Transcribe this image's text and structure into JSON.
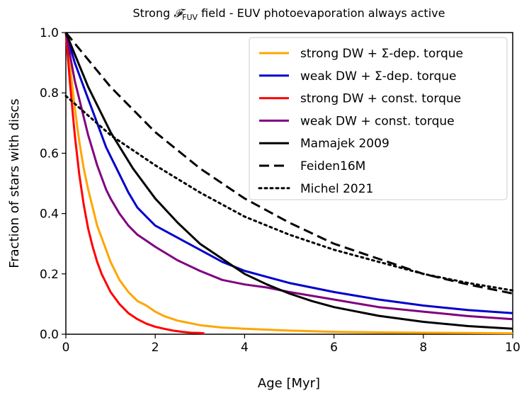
{
  "chart_data": {
    "type": "line",
    "title_main": "Strong ",
    "title_symbol": "𝓕",
    "title_sub": "FUV",
    "title_rest": " field - EUV photoevaporation always active",
    "xlabel": "Age [Myr]",
    "ylabel": "Fraction of stars with discs",
    "xlim": [
      0,
      10
    ],
    "ylim": [
      0,
      1
    ],
    "xticks": [
      0,
      2,
      4,
      6,
      8,
      10
    ],
    "yticks": [
      0.0,
      0.2,
      0.4,
      0.6,
      0.8,
      1.0
    ],
    "xtick_labels": [
      "0",
      "2",
      "4",
      "6",
      "8",
      "10"
    ],
    "ytick_labels": [
      "0.0",
      "0.2",
      "0.4",
      "0.6",
      "0.8",
      "1.0"
    ],
    "legend_position": "top-right",
    "series": [
      {
        "name": "strong DW + Σ-dep. torque",
        "color": "#ffa500",
        "style": "solid",
        "x": [
          0,
          0.1,
          0.2,
          0.3,
          0.4,
          0.5,
          0.6,
          0.7,
          0.8,
          0.9,
          1.0,
          1.2,
          1.4,
          1.6,
          1.8,
          2.0,
          2.2,
          2.5,
          3.0,
          3.5,
          4.0,
          5.0,
          6.0,
          7.0,
          8.0,
          9.0,
          10.0
        ],
        "values": [
          1.0,
          0.88,
          0.75,
          0.64,
          0.55,
          0.48,
          0.42,
          0.36,
          0.32,
          0.28,
          0.24,
          0.18,
          0.14,
          0.11,
          0.095,
          0.075,
          0.06,
          0.045,
          0.03,
          0.022,
          0.018,
          0.012,
          0.008,
          0.006,
          0.005,
          0.004,
          0.003
        ]
      },
      {
        "name": "weak DW + Σ-dep. torque",
        "color": "#0000cc",
        "style": "solid",
        "x": [
          0,
          0.1,
          0.2,
          0.3,
          0.4,
          0.5,
          0.6,
          0.7,
          0.8,
          0.9,
          1.0,
          1.2,
          1.4,
          1.6,
          1.8,
          2.0,
          2.5,
          3.0,
          3.5,
          4.0,
          4.5,
          5.0,
          6.0,
          7.0,
          8.0,
          9.0,
          10.0
        ],
        "values": [
          1.0,
          0.95,
          0.9,
          0.86,
          0.82,
          0.78,
          0.74,
          0.7,
          0.66,
          0.62,
          0.59,
          0.53,
          0.47,
          0.42,
          0.39,
          0.36,
          0.32,
          0.28,
          0.24,
          0.21,
          0.19,
          0.17,
          0.14,
          0.115,
          0.095,
          0.08,
          0.07
        ]
      },
      {
        "name": "strong DW + const. torque",
        "color": "#ff0000",
        "style": "solid",
        "x": [
          0,
          0.1,
          0.2,
          0.3,
          0.4,
          0.5,
          0.6,
          0.7,
          0.8,
          0.9,
          1.0,
          1.2,
          1.4,
          1.6,
          1.8,
          2.0,
          2.2,
          2.4,
          2.6,
          2.8,
          3.0,
          3.1
        ],
        "values": [
          1.0,
          0.82,
          0.66,
          0.53,
          0.43,
          0.35,
          0.29,
          0.24,
          0.2,
          0.17,
          0.14,
          0.1,
          0.07,
          0.05,
          0.035,
          0.025,
          0.018,
          0.012,
          0.008,
          0.005,
          0.004,
          0.003
        ]
      },
      {
        "name": "weak DW + const. torque",
        "color": "#800080",
        "style": "solid",
        "x": [
          0,
          0.1,
          0.2,
          0.3,
          0.4,
          0.5,
          0.6,
          0.7,
          0.8,
          0.9,
          1.0,
          1.2,
          1.4,
          1.6,
          1.8,
          2.0,
          2.5,
          3.0,
          3.5,
          4.0,
          4.5,
          5.0,
          6.0,
          7.0,
          8.0,
          9.0,
          10.0
        ],
        "values": [
          1.0,
          0.92,
          0.84,
          0.78,
          0.72,
          0.66,
          0.61,
          0.56,
          0.52,
          0.48,
          0.45,
          0.4,
          0.36,
          0.33,
          0.31,
          0.29,
          0.245,
          0.21,
          0.18,
          0.165,
          0.155,
          0.14,
          0.115,
          0.09,
          0.075,
          0.06,
          0.05
        ]
      },
      {
        "name": "Mamajek 2009",
        "color": "#000000",
        "style": "solid",
        "x": [
          0,
          0.5,
          1.0,
          1.5,
          2.0,
          2.5,
          3.0,
          3.5,
          4.0,
          4.5,
          5.0,
          5.5,
          6.0,
          7.0,
          8.0,
          9.0,
          10.0
        ],
        "values": [
          1.0,
          0.82,
          0.67,
          0.55,
          0.45,
          0.37,
          0.3,
          0.25,
          0.2,
          0.165,
          0.135,
          0.11,
          0.09,
          0.061,
          0.041,
          0.027,
          0.018
        ]
      },
      {
        "name": "Feiden16M",
        "color": "#000000",
        "style": "dashed",
        "x": [
          0,
          1,
          2,
          3,
          4,
          5,
          6,
          7,
          8,
          9,
          10
        ],
        "values": [
          1.0,
          0.82,
          0.67,
          0.55,
          0.45,
          0.37,
          0.3,
          0.25,
          0.2,
          0.165,
          0.135
        ]
      },
      {
        "name": "Michel 2021",
        "color": "#000000",
        "style": "dotted",
        "x": [
          0,
          1,
          2,
          3,
          4,
          5,
          6,
          7,
          8,
          9,
          10
        ],
        "values": [
          0.79,
          0.66,
          0.56,
          0.47,
          0.39,
          0.33,
          0.28,
          0.24,
          0.2,
          0.17,
          0.145
        ]
      }
    ]
  }
}
